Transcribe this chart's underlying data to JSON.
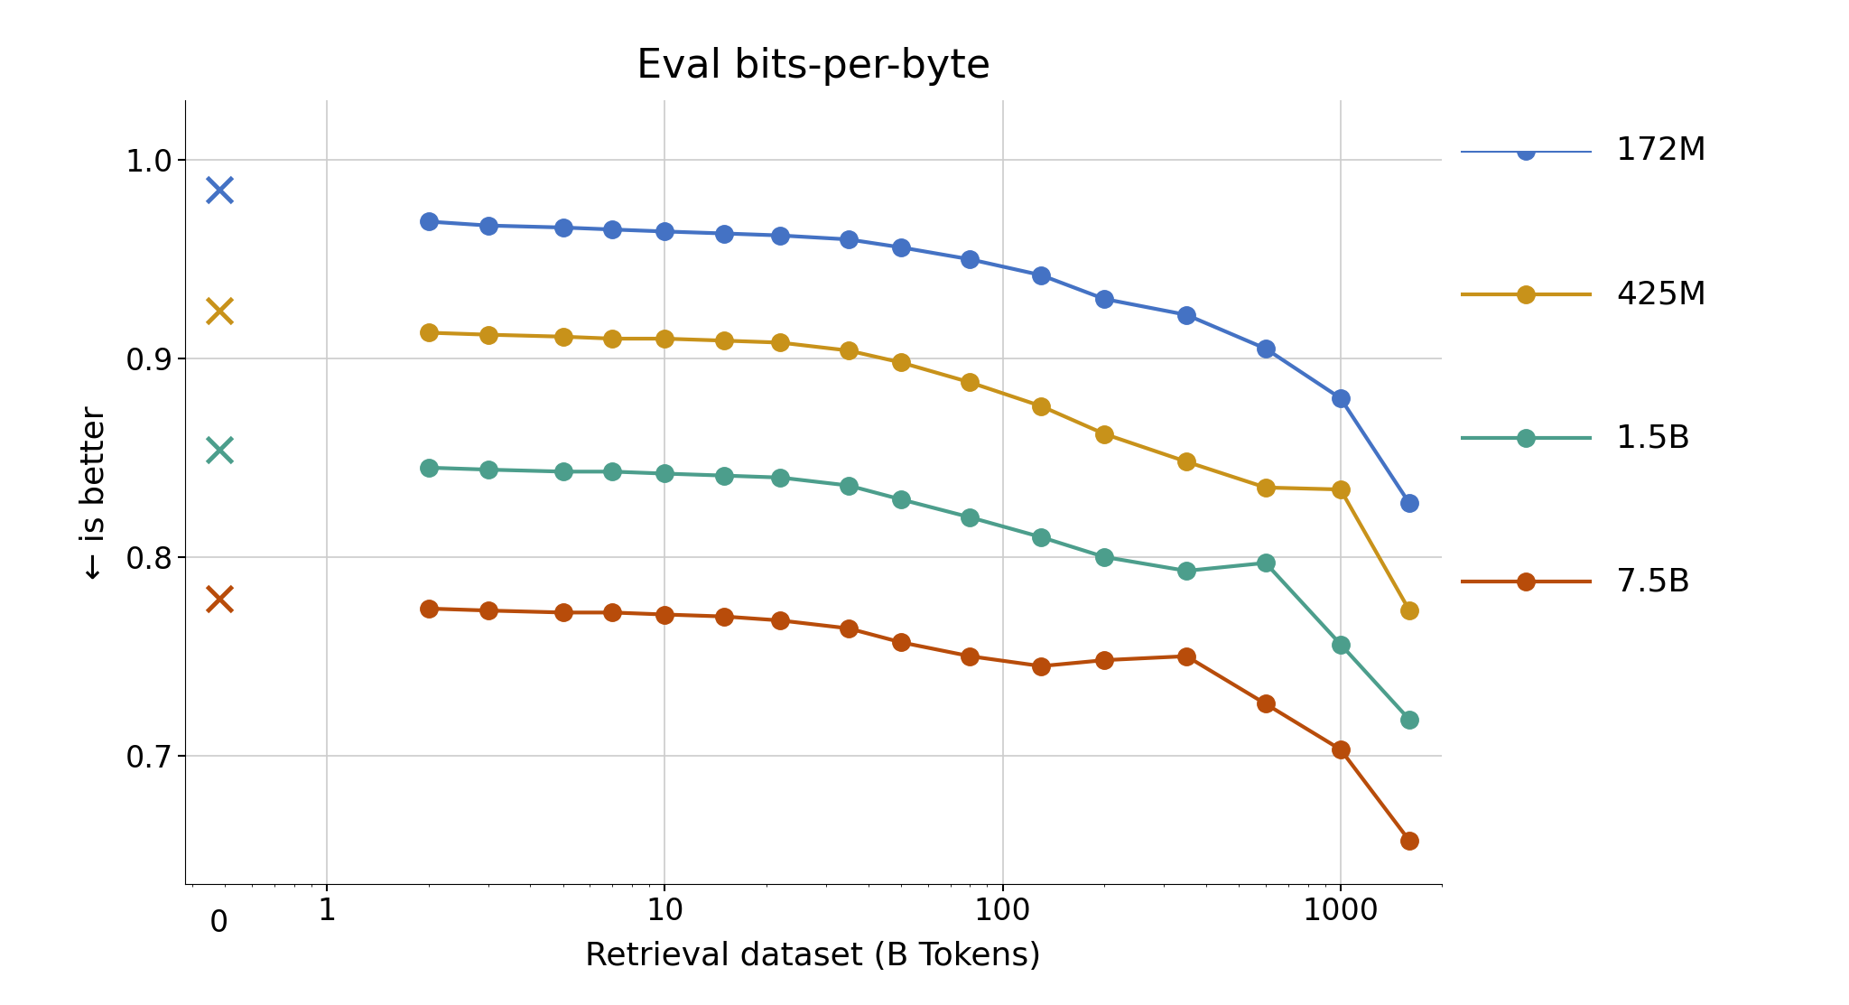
{
  "title": "Eval bits-per-byte",
  "xlabel": "Retrieval dataset (B Tokens)",
  "ylabel": "← is better",
  "series": [
    {
      "label": "172M",
      "color": "#4472C4",
      "baseline": 0.985,
      "x": [
        2,
        3,
        5,
        7,
        10,
        15,
        22,
        35,
        50,
        80,
        130,
        200,
        350,
        600,
        1000,
        1600
      ],
      "y": [
        0.969,
        0.967,
        0.966,
        0.965,
        0.964,
        0.963,
        0.962,
        0.96,
        0.956,
        0.95,
        0.942,
        0.93,
        0.922,
        0.905,
        0.88,
        0.827
      ]
    },
    {
      "label": "425M",
      "color": "#C8921A",
      "baseline": 0.924,
      "x": [
        2,
        3,
        5,
        7,
        10,
        15,
        22,
        35,
        50,
        80,
        130,
        200,
        350,
        600,
        1000,
        1600
      ],
      "y": [
        0.913,
        0.912,
        0.911,
        0.91,
        0.91,
        0.909,
        0.908,
        0.904,
        0.898,
        0.888,
        0.876,
        0.862,
        0.848,
        0.835,
        0.834,
        0.773
      ]
    },
    {
      "label": "1.5B",
      "color": "#4C9E8C",
      "baseline": 0.854,
      "x": [
        2,
        3,
        5,
        7,
        10,
        15,
        22,
        35,
        50,
        80,
        130,
        200,
        350,
        600,
        1000,
        1600
      ],
      "y": [
        0.845,
        0.844,
        0.843,
        0.843,
        0.842,
        0.841,
        0.84,
        0.836,
        0.829,
        0.82,
        0.81,
        0.8,
        0.793,
        0.797,
        0.756,
        0.718
      ]
    },
    {
      "label": "7.5B",
      "color": "#B84C0A",
      "baseline": 0.779,
      "x": [
        2,
        3,
        5,
        7,
        10,
        15,
        22,
        35,
        50,
        80,
        130,
        200,
        350,
        600,
        1000,
        1600
      ],
      "y": [
        0.774,
        0.773,
        0.772,
        0.772,
        0.771,
        0.77,
        0.768,
        0.764,
        0.757,
        0.75,
        0.745,
        0.748,
        0.75,
        0.726,
        0.703,
        0.657
      ]
    }
  ],
  "ylim": [
    0.635,
    1.03
  ],
  "yticks": [
    0.7,
    0.8,
    0.9,
    1.0
  ],
  "background_color": "#FFFFFF",
  "grid_color": "#CCCCCC",
  "title_fontsize": 32,
  "label_fontsize": 26,
  "tick_fontsize": 24,
  "legend_fontsize": 26,
  "marker_size": 14,
  "line_width": 3.0
}
